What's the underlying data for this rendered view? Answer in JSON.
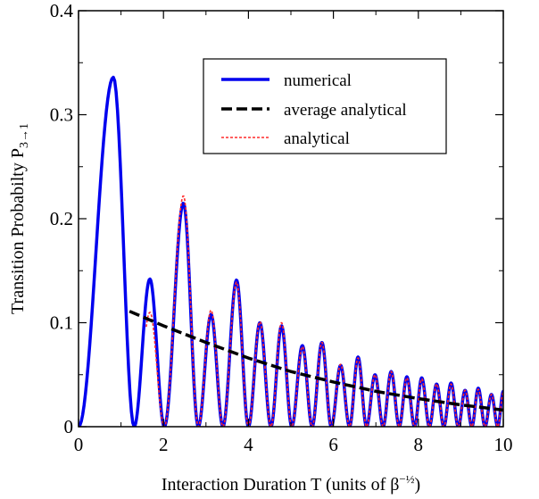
{
  "chart_data": {
    "type": "line",
    "title": "",
    "xlabel": "Interaction Duration T (units of β",
    "xlabel_sup": "−½",
    "xlabel_close": ")",
    "ylabel": "Transition Probabilty P",
    "ylabel_sub": "3→1",
    "xlim": [
      0,
      10
    ],
    "ylim": [
      0,
      0.4
    ],
    "x_ticks": [
      0,
      2,
      4,
      6,
      8,
      10
    ],
    "x_tick_labels": [
      "0",
      "2",
      "4",
      "6",
      "8",
      "10"
    ],
    "y_ticks": [
      0,
      0.1,
      0.2,
      0.3,
      0.4
    ],
    "y_tick_labels": [
      "0",
      "0.1",
      "0.2",
      "0.3",
      "0.4"
    ],
    "grid": false,
    "legend_position": "top-right",
    "series": [
      {
        "name": "numerical",
        "style": "solid",
        "color": "#0000ee",
        "peaks": [
          [
            0.82,
            0.336
          ],
          [
            1.68,
            0.142
          ],
          [
            2.47,
            0.215
          ],
          [
            3.12,
            0.108
          ],
          [
            3.72,
            0.141
          ],
          [
            4.27,
            0.1
          ],
          [
            4.78,
            0.097
          ],
          [
            5.27,
            0.078
          ],
          [
            5.73,
            0.081
          ],
          [
            6.17,
            0.059
          ],
          [
            6.58,
            0.067
          ],
          [
            6.98,
            0.05
          ],
          [
            7.36,
            0.053
          ],
          [
            7.73,
            0.048
          ],
          [
            8.08,
            0.047
          ],
          [
            8.43,
            0.041
          ],
          [
            8.77,
            0.042
          ],
          [
            9.1,
            0.035
          ],
          [
            9.41,
            0.037
          ],
          [
            9.72,
            0.031
          ],
          [
            10.0,
            0.034
          ]
        ],
        "zeros": [
          0.0,
          1.31,
          2.02,
          2.82,
          3.4,
          4.0,
          4.53,
          5.02,
          5.5,
          5.95,
          6.38,
          6.78,
          7.17,
          7.55,
          7.91,
          8.26,
          8.6,
          8.94,
          9.26,
          9.57,
          9.87
        ]
      },
      {
        "name": "average analytical",
        "style": "dashed",
        "color": "#000000",
        "x": [
          1.2,
          2,
          3,
          4,
          5,
          6,
          7,
          8,
          9,
          10
        ],
        "y": [
          0.111,
          0.097,
          0.081,
          0.066,
          0.053,
          0.043,
          0.034,
          0.027,
          0.021,
          0.016
        ]
      },
      {
        "name": "analytical",
        "style": "dotted",
        "color": "#ff2a2a",
        "x_start": 1.58,
        "peaks": [
          [
            1.68,
            0.11
          ],
          [
            2.47,
            0.222
          ],
          [
            3.12,
            0.112
          ],
          [
            3.72,
            0.139
          ],
          [
            4.27,
            0.101
          ],
          [
            4.78,
            0.1
          ],
          [
            5.27,
            0.077
          ],
          [
            5.73,
            0.081
          ],
          [
            6.17,
            0.06
          ],
          [
            6.58,
            0.066
          ],
          [
            6.98,
            0.05
          ],
          [
            7.36,
            0.053
          ],
          [
            7.73,
            0.047
          ],
          [
            8.08,
            0.046
          ],
          [
            8.43,
            0.041
          ],
          [
            8.77,
            0.041
          ],
          [
            9.1,
            0.035
          ],
          [
            9.41,
            0.036
          ],
          [
            9.72,
            0.031
          ],
          [
            10.0,
            0.033
          ]
        ]
      }
    ]
  }
}
